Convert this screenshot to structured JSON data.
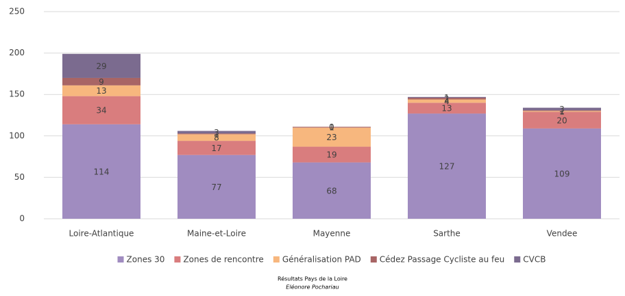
{
  "chart_data": {
    "type": "stacked_bar",
    "categories": [
      "Loire-Atlantique",
      "Maine-et-Loire",
      "Mayenne",
      "Sarthe",
      "Vendee"
    ],
    "series": [
      {
        "name": "Zones 30",
        "color": "#a08cc0",
        "values": [
          114,
          77,
          68,
          127,
          109
        ]
      },
      {
        "name": "Zones de rencontre",
        "color": "#d97d7e",
        "values": [
          34,
          17,
          19,
          13,
          20
        ]
      },
      {
        "name": "Généralisation PAD",
        "color": "#f7b77e",
        "values": [
          13,
          8,
          23,
          4,
          1
        ]
      },
      {
        "name": "Cédez Passage Cycliste au feu",
        "color": "#a86565",
        "values": [
          9,
          1,
          1,
          2,
          1
        ]
      },
      {
        "name": "CVCB",
        "color": "#7b6b8f",
        "values": [
          29,
          3,
          0,
          1,
          3
        ]
      }
    ],
    "ylim": [
      0,
      250
    ],
    "yticks": [
      0,
      50,
      100,
      150,
      200,
      250
    ],
    "grid": true,
    "caption": "Résultats Pays de la Loire",
    "author": "Eléonore Pochariau"
  }
}
